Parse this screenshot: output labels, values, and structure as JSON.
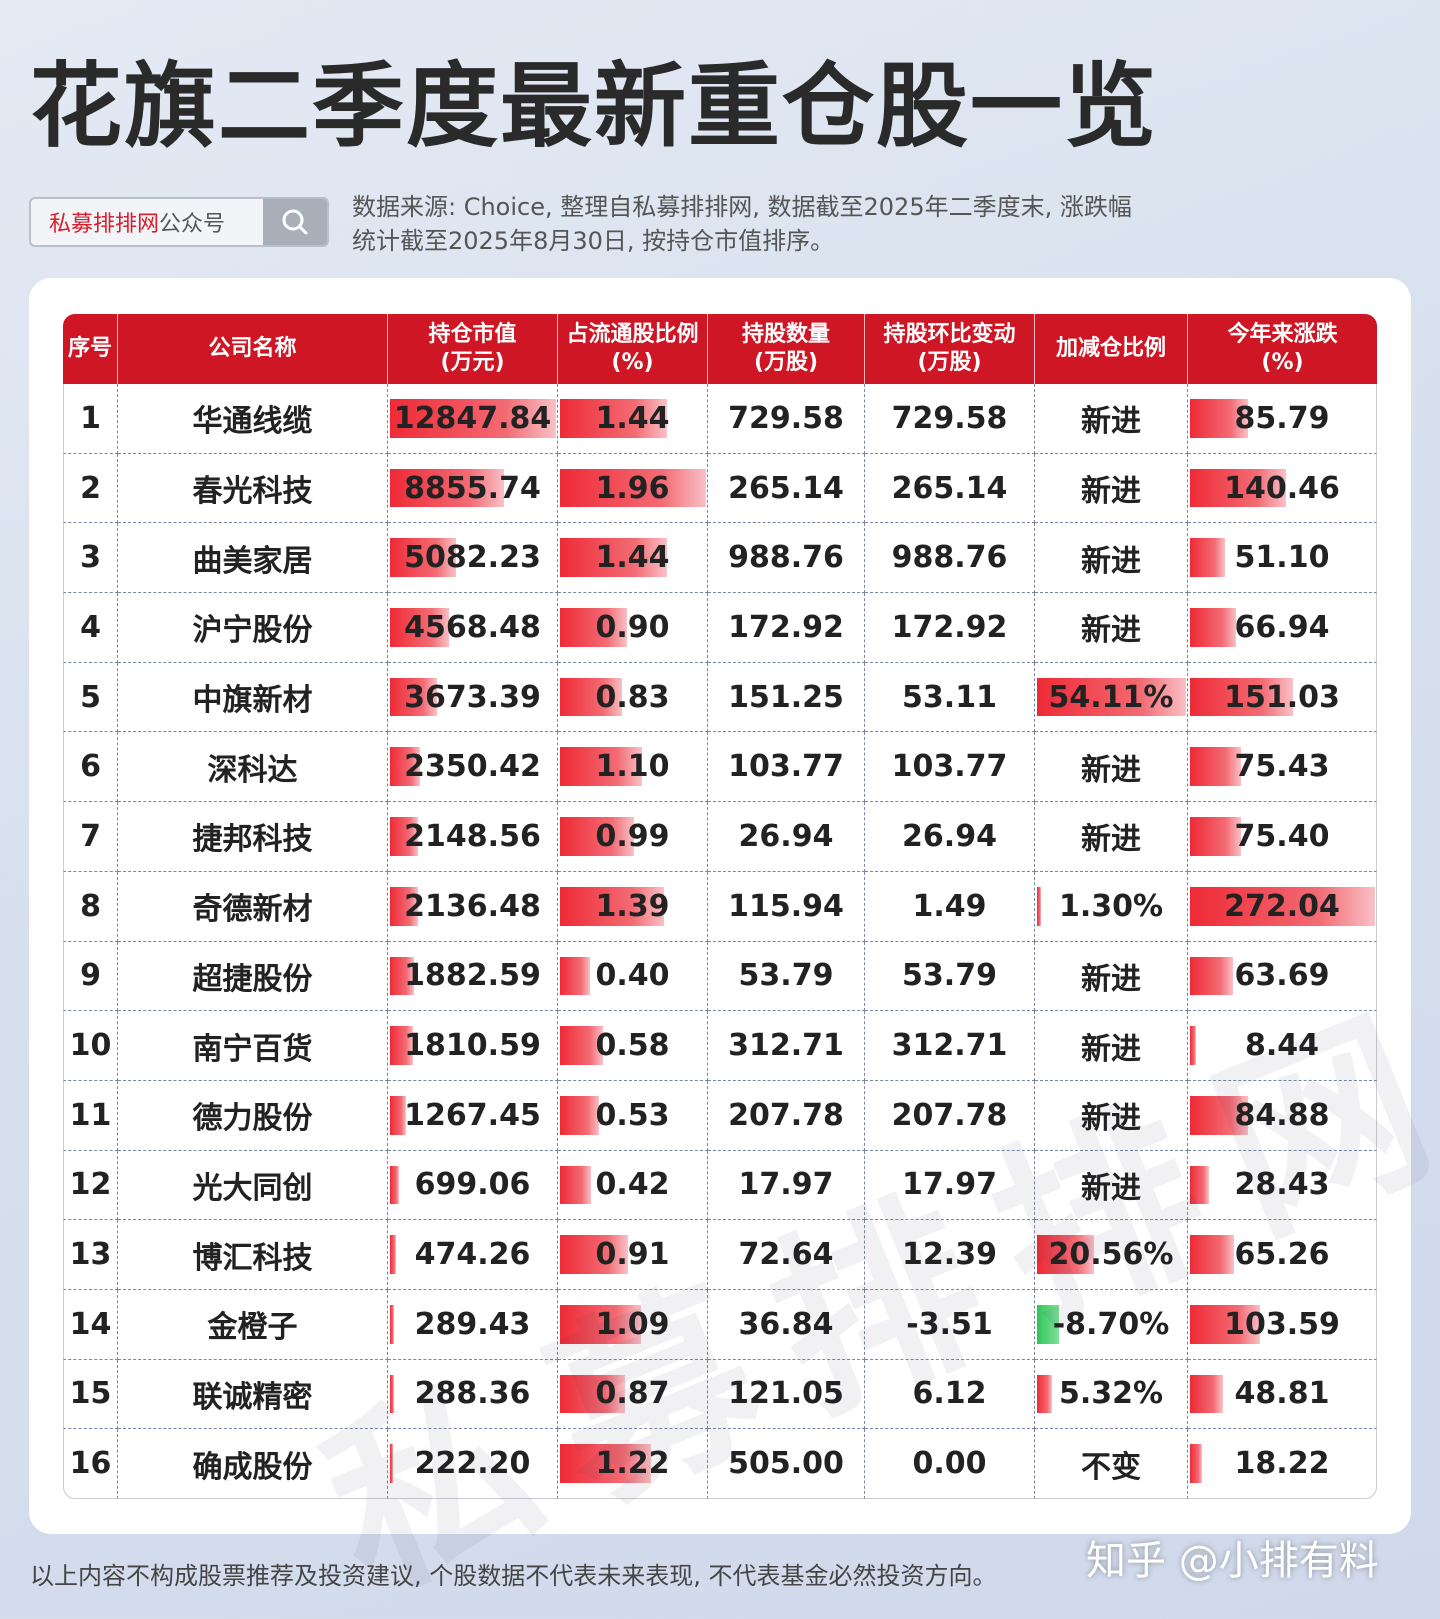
{
  "title": "花旗二季度最新重仓股一览",
  "search": {
    "brand": "私募排排网",
    "suffix": "公众号"
  },
  "source_note": "数据来源: Choice, 整理自私募排排网, 数据截至2025年二季度末, 涨跌幅统计截至2025年8月30日, 按持仓市值排序。",
  "table": {
    "headers": [
      "序号",
      "公司名称",
      "持仓市值\n(万元)",
      "占流通股比例\n(%)",
      "持股数量\n(万股)",
      "持股环比变动\n(万股)",
      "加减仓比例",
      "今年来涨跌\n(%)"
    ],
    "rows": [
      {
        "rank": "1",
        "name": "华通线缆",
        "value": "12847.84",
        "float_pct": "1.44",
        "shares": "729.58",
        "change": "729.58",
        "adjust": "新进",
        "ytd": "85.79"
      },
      {
        "rank": "2",
        "name": "春光科技",
        "value": "8855.74",
        "float_pct": "1.96",
        "shares": "265.14",
        "change": "265.14",
        "adjust": "新进",
        "ytd": "140.46"
      },
      {
        "rank": "3",
        "name": "曲美家居",
        "value": "5082.23",
        "float_pct": "1.44",
        "shares": "988.76",
        "change": "988.76",
        "adjust": "新进",
        "ytd": "51.10"
      },
      {
        "rank": "4",
        "name": "沪宁股份",
        "value": "4568.48",
        "float_pct": "0.90",
        "shares": "172.92",
        "change": "172.92",
        "adjust": "新进",
        "ytd": "66.94"
      },
      {
        "rank": "5",
        "name": "中旗新材",
        "value": "3673.39",
        "float_pct": "0.83",
        "shares": "151.25",
        "change": "53.11",
        "adjust": "54.11%",
        "ytd": "151.03"
      },
      {
        "rank": "6",
        "name": "深科达",
        "value": "2350.42",
        "float_pct": "1.10",
        "shares": "103.77",
        "change": "103.77",
        "adjust": "新进",
        "ytd": "75.43"
      },
      {
        "rank": "7",
        "name": "捷邦科技",
        "value": "2148.56",
        "float_pct": "0.99",
        "shares": "26.94",
        "change": "26.94",
        "adjust": "新进",
        "ytd": "75.40"
      },
      {
        "rank": "8",
        "name": "奇德新材",
        "value": "2136.48",
        "float_pct": "1.39",
        "shares": "115.94",
        "change": "1.49",
        "adjust": "1.30%",
        "ytd": "272.04"
      },
      {
        "rank": "9",
        "name": "超捷股份",
        "value": "1882.59",
        "float_pct": "0.40",
        "shares": "53.79",
        "change": "53.79",
        "adjust": "新进",
        "ytd": "63.69"
      },
      {
        "rank": "10",
        "name": "南宁百货",
        "value": "1810.59",
        "float_pct": "0.58",
        "shares": "312.71",
        "change": "312.71",
        "adjust": "新进",
        "ytd": "8.44"
      },
      {
        "rank": "11",
        "name": "德力股份",
        "value": "1267.45",
        "float_pct": "0.53",
        "shares": "207.78",
        "change": "207.78",
        "adjust": "新进",
        "ytd": "84.88"
      },
      {
        "rank": "12",
        "name": "光大同创",
        "value": "699.06",
        "float_pct": "0.42",
        "shares": "17.97",
        "change": "17.97",
        "adjust": "新进",
        "ytd": "28.43"
      },
      {
        "rank": "13",
        "name": "博汇科技",
        "value": "474.26",
        "float_pct": "0.91",
        "shares": "72.64",
        "change": "12.39",
        "adjust": "20.56%",
        "ytd": "65.26"
      },
      {
        "rank": "14",
        "name": "金橙子",
        "value": "289.43",
        "float_pct": "1.09",
        "shares": "36.84",
        "change": "-3.51",
        "adjust": "-8.70%",
        "ytd": "103.59"
      },
      {
        "rank": "15",
        "name": "联诚精密",
        "value": "288.36",
        "float_pct": "0.87",
        "shares": "121.05",
        "change": "6.12",
        "adjust": "5.32%",
        "ytd": "48.81"
      },
      {
        "rank": "16",
        "name": "确成股份",
        "value": "222.20",
        "float_pct": "1.22",
        "shares": "505.00",
        "change": "0.00",
        "adjust": "不变",
        "ytd": "18.22"
      }
    ]
  },
  "watermark": "私募排排网",
  "disclaimer": "以上内容不构成股票推荐及投资建议, 个股数据不代表未来表现, 不代表基金必然投资方向。",
  "zhihu": "知乎 @小排有料",
  "colors": {
    "header_red": "#cf1625",
    "bar_red": "#ee2a36",
    "bar_green": "#2ec45a"
  }
}
